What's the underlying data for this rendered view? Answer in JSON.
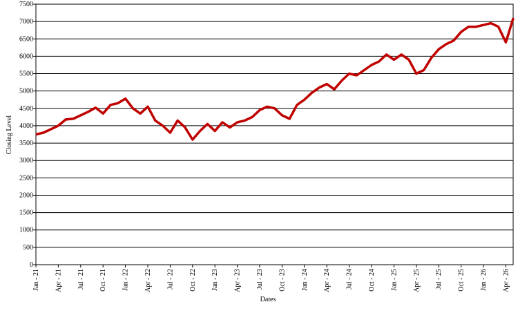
{
  "chart_data": {
    "type": "line",
    "x_label": "Dates",
    "y_label": "Closing Level",
    "x": [
      "2021-01",
      "2021-02",
      "2021-03",
      "2021-04",
      "2021-05",
      "2021-06",
      "2021-07",
      "2021-08",
      "2021-09",
      "2021-10",
      "2021-11",
      "2021-12",
      "2022-01",
      "2022-02",
      "2022-03",
      "2022-04",
      "2022-05",
      "2022-06",
      "2022-07",
      "2022-08",
      "2022-09",
      "2022-10",
      "2022-11",
      "2022-12",
      "2023-01",
      "2023-02",
      "2023-03",
      "2023-04",
      "2023-05",
      "2023-06",
      "2023-07",
      "2023-08",
      "2023-09",
      "2023-10",
      "2023-11",
      "2023-12",
      "2024-01",
      "2024-02",
      "2024-03",
      "2024-04",
      "2024-05",
      "2024-06",
      "2024-07",
      "2024-08",
      "2024-09",
      "2024-10",
      "2024-11",
      "2024-12",
      "2025-01",
      "2025-02",
      "2025-03",
      "2025-04",
      "2025-05",
      "2025-06",
      "2025-07",
      "2025-08",
      "2025-09",
      "2025-10",
      "2025-11",
      "2025-12",
      "2026-01",
      "2026-02",
      "2026-03",
      "2026-04",
      "2026-05"
    ],
    "series": [
      {
        "name": "Closing Level",
        "color": "#c00000",
        "values": [
          3750,
          3800,
          3900,
          4000,
          4180,
          4200,
          4300,
          4400,
          4520,
          4350,
          4600,
          4650,
          4780,
          4500,
          4350,
          4550,
          4150,
          4000,
          3800,
          4150,
          3950,
          3600,
          3850,
          4050,
          3850,
          4100,
          3950,
          4100,
          4150,
          4250,
          4450,
          4550,
          4500,
          4300,
          4200,
          4600,
          4750,
          4950,
          5100,
          5200,
          5050,
          5300,
          5500,
          5450,
          5600,
          5750,
          5850,
          6050,
          5900,
          6050,
          5900,
          5500,
          5600,
          5950,
          6200,
          6350,
          6450,
          6700,
          6850,
          6850,
          6900,
          6950,
          6850,
          6400,
          7100
        ]
      }
    ],
    "xticks": [
      {
        "value": "2021-01",
        "label": "Jan - 21"
      },
      {
        "value": "2021-04",
        "label": "Apr - 21"
      },
      {
        "value": "2021-07",
        "label": "Jul - 21"
      },
      {
        "value": "2021-10",
        "label": "Oct - 21"
      },
      {
        "value": "2022-01",
        "label": "Jan - 22"
      },
      {
        "value": "2022-04",
        "label": "Apr - 22"
      },
      {
        "value": "2022-07",
        "label": "Jul - 22"
      },
      {
        "value": "2022-10",
        "label": "Oct - 22"
      },
      {
        "value": "2023-01",
        "label": "Jan - 23"
      },
      {
        "value": "2023-04",
        "label": "Apr - 23"
      },
      {
        "value": "2023-07",
        "label": "Jul - 23"
      },
      {
        "value": "2023-10",
        "label": "Oct - 23"
      },
      {
        "value": "2024-01",
        "label": "Jan - 24"
      },
      {
        "value": "2024-04",
        "label": "Apr - 24"
      },
      {
        "value": "2024-07",
        "label": "Jul - 24"
      },
      {
        "value": "2024-10",
        "label": "Oct - 24"
      },
      {
        "value": "2025-01",
        "label": "Jan - 25"
      },
      {
        "value": "2025-04",
        "label": "Apr - 25"
      },
      {
        "value": "2025-07",
        "label": "Jul - 25"
      },
      {
        "value": "2025-10",
        "label": "Oct - 25"
      },
      {
        "value": "2026-01",
        "label": "Jan - 26"
      },
      {
        "value": "2026-04",
        "label": "Apr - 26"
      }
    ],
    "ylim": [
      0,
      7500
    ],
    "yticks": [
      0,
      500,
      1000,
      1500,
      2000,
      2500,
      3000,
      3500,
      4000,
      4500,
      5000,
      5500,
      6000,
      6500,
      7000,
      7500
    ],
    "grid": true
  }
}
